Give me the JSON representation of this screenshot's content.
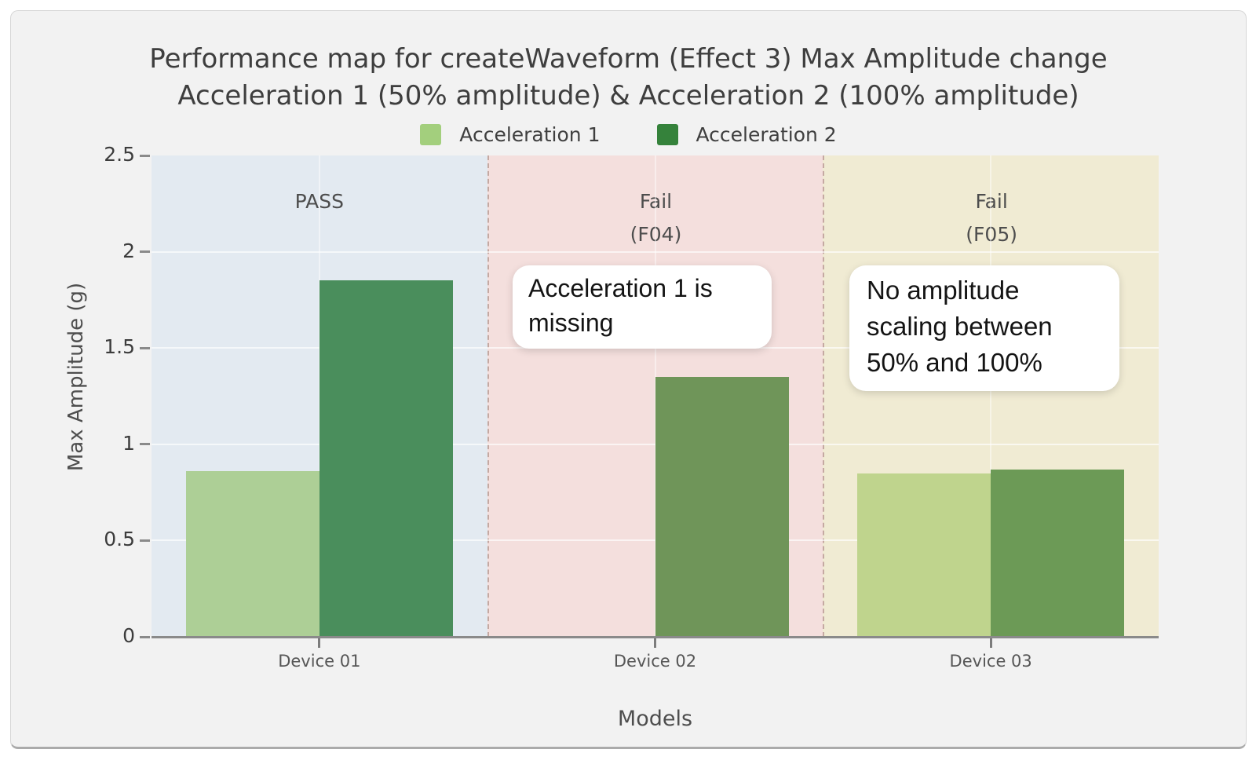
{
  "page": {
    "background": "#ffffff",
    "card_background": "#f2f2f2"
  },
  "title": {
    "line1": "Performance map for createWaveform (Effect 3) Max Amplitude change",
    "line2": "Acceleration 1 (50% amplitude) & Acceleration 2 (100% amplitude)"
  },
  "legend": {
    "items": [
      {
        "label": "Acceleration 1",
        "color": "#a3cf7d"
      },
      {
        "label": "Acceleration 2",
        "color": "#35823b"
      }
    ]
  },
  "axes": {
    "y_title": "Max Amplitude (g)",
    "x_title": "Models",
    "y_ticks": [
      {
        "value": 0,
        "label": "0"
      },
      {
        "value": 0.5,
        "label": "0.5"
      },
      {
        "value": 1,
        "label": "1"
      },
      {
        "value": 1.5,
        "label": "1.5"
      },
      {
        "value": 2,
        "label": "2"
      },
      {
        "value": 2.5,
        "label": "2.5"
      }
    ],
    "x_ticks": [
      "Device 01",
      "Device 02",
      "Device 03"
    ]
  },
  "regions": [
    {
      "label": "PASS",
      "background": "#e3eaf1"
    },
    {
      "label": "Fail\n(F04)",
      "background": "#f4dfdd"
    },
    {
      "label": "Fail\n(F05)",
      "background": "#f0ebd3"
    }
  ],
  "annotations": [
    {
      "text": "Acceleration 1 is missing"
    },
    {
      "text": "No amplitude scaling between 50% and 100%"
    }
  ],
  "colors": {
    "axis_line": "#8a8a8a",
    "grid_line_h": "rgba(255,255,255,0.65)",
    "grid_line_v": "rgba(255,255,255,0.45)",
    "region_separator": "#c5a9a2"
  },
  "chart_data": {
    "type": "bar",
    "title": "Performance map for createWaveform (Effect 3) Max Amplitude change — Acceleration 1 (50% amplitude) & Acceleration 2 (100% amplitude)",
    "xlabel": "Models",
    "ylabel": "Max Amplitude (g)",
    "categories": [
      "Device 01",
      "Device 02",
      "Device 03"
    ],
    "series": [
      {
        "name": "Acceleration 1",
        "color": "#a3cf7d",
        "values": [
          0.86,
          null,
          0.85
        ]
      },
      {
        "name": "Acceleration 2",
        "color": "#35823b",
        "values": [
          1.85,
          1.35,
          0.87
        ]
      }
    ],
    "bar_render_colors": [
      [
        "#adcf96",
        "#4a8e5c"
      ],
      [
        null,
        "#6f9559"
      ],
      [
        "#bfd48d",
        "#6c9a56"
      ]
    ],
    "ylim": [
      0,
      2.5
    ],
    "ytick_step": 0.5,
    "grid": true,
    "legend_position": "top",
    "region_bands": [
      {
        "category": "Device 01",
        "label": "PASS",
        "background": "#e3eaf1"
      },
      {
        "category": "Device 02",
        "label": "Fail (F04)",
        "background": "#f4dfdd"
      },
      {
        "category": "Device 03",
        "label": "Fail (F05)",
        "background": "#f0ebd3"
      }
    ],
    "annotations": [
      {
        "target_category": "Device 02",
        "text": "Acceleration 1 is missing"
      },
      {
        "target_category": "Device 03",
        "text": "No amplitude scaling between 50% and 100%"
      }
    ]
  }
}
